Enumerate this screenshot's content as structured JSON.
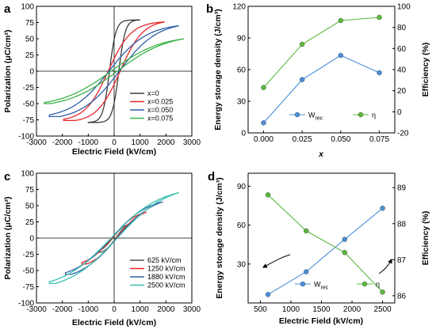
{
  "chart_data": [
    {
      "panel": "a",
      "type": "line",
      "xlabel": "Electric Field (kV/cm)",
      "ylabel": "Polarization (μC/cm²)",
      "xlim": [
        -3000,
        3000
      ],
      "ylim": [
        -100,
        100
      ],
      "xticks": [
        -3000,
        -2000,
        -1000,
        0,
        1000,
        2000,
        3000
      ],
      "yticks": [
        -100,
        -75,
        -50,
        -25,
        0,
        25,
        50,
        75,
        100
      ],
      "legend_position": "bottom-right",
      "series": [
        {
          "name": "x=0",
          "color": "#3c3c3c",
          "loop": {
            "emax": 1000,
            "pmax": 79,
            "pr": 38,
            "ec": 180,
            "rounding": 4
          }
        },
        {
          "name": "x=0.025",
          "color": "#e8282a",
          "loop": {
            "emax": 1950,
            "pmax": 76,
            "pr": 12,
            "ec": 230,
            "rounding": 2.2
          }
        },
        {
          "name": "x=0.050",
          "color": "#2f5fa8",
          "loop": {
            "emax": 2500,
            "pmax": 70,
            "pr": 6,
            "ec": 200,
            "rounding": 1.7
          }
        },
        {
          "name": "x=0.075",
          "color": "#3db44a",
          "loop": {
            "emax": 2700,
            "pmax": 50,
            "pr": 3,
            "ec": 120,
            "rounding": 1.4
          }
        }
      ]
    },
    {
      "panel": "b",
      "type": "line",
      "xlabel": "x",
      "ylabel": "Energy storage density (J/cm³)",
      "ylabel_right": "Efficiency (%)",
      "categories": [
        "0.000",
        "0.025",
        "0.050",
        "0.075"
      ],
      "x": [
        0,
        0.025,
        0.05,
        0.075
      ],
      "xlim": [
        -0.01,
        0.085
      ],
      "ylim": [
        0,
        120
      ],
      "ylim_right": [
        -20,
        100
      ],
      "yticks": [
        0,
        30,
        60,
        90,
        120
      ],
      "yticks_right": [
        -20,
        0,
        20,
        40,
        60,
        80,
        100
      ],
      "legend_position": "bottom",
      "series": [
        {
          "name_main": "W",
          "name_sub": "rec",
          "axis": "left",
          "color": "#4a90d9",
          "values": [
            9.5,
            50.5,
            73.5,
            57
          ]
        },
        {
          "name_main": "η",
          "name_sub": "",
          "axis": "right",
          "color": "#5cb83c",
          "values": [
            23,
            64,
            86.5,
            89.5
          ]
        }
      ]
    },
    {
      "panel": "c",
      "type": "line",
      "xlabel": "Electric Field (kV/cm)",
      "ylabel": "Polarization (μC/cm²)",
      "xlim": [
        -3000,
        3000
      ],
      "ylim": [
        -100,
        100
      ],
      "xticks": [
        -3000,
        -2000,
        -1000,
        0,
        1000,
        2000,
        3000
      ],
      "yticks": [
        -100,
        -75,
        -50,
        -25,
        0,
        25,
        50,
        75,
        100
      ],
      "legend_position": "bottom-right",
      "series": [
        {
          "name": "625 kV/cm",
          "color": "#555555",
          "loop": {
            "emax": 625,
            "pmax": 22,
            "pr": 2,
            "ec": 60,
            "rounding": 1.3
          }
        },
        {
          "name": "1250 kV/cm",
          "color": "#e8282a",
          "loop": {
            "emax": 1250,
            "pmax": 40,
            "pr": 3,
            "ec": 90,
            "rounding": 1.3
          }
        },
        {
          "name": "1880 kV/cm",
          "color": "#2f5fa8",
          "loop": {
            "emax": 1880,
            "pmax": 56,
            "pr": 4,
            "ec": 110,
            "rounding": 1.3
          }
        },
        {
          "name": "2500 kV/cm",
          "color": "#3bbfb0",
          "loop": {
            "emax": 2500,
            "pmax": 70,
            "pr": 5,
            "ec": 120,
            "rounding": 1.3
          }
        }
      ]
    },
    {
      "panel": "d",
      "type": "line",
      "xlabel": "Electric Field (kV/cm)",
      "ylabel": "Energy storage density (J/cm³)",
      "ylabel_right": "Efficiency (%)",
      "x": [
        625,
        1250,
        1880,
        2500
      ],
      "xlim": [
        300,
        2700
      ],
      "xticks": [
        500,
        1000,
        1500,
        2000,
        2500
      ],
      "ylim": [
        0,
        100
      ],
      "yticks": [
        30,
        60,
        90
      ],
      "ylim_right": [
        85.8,
        89.4
      ],
      "yticks_right": [
        86,
        87,
        88,
        89
      ],
      "legend_position": "bottom",
      "series": [
        {
          "name_main": "W",
          "name_sub": "rec",
          "axis": "left",
          "color": "#4a90d9",
          "values": [
            6.5,
            24,
            49,
            73
          ]
        },
        {
          "name_main": "η",
          "name_sub": "",
          "axis": "right",
          "color": "#5cb83c",
          "values": [
            88.8,
            87.8,
            87.2,
            86.1
          ]
        }
      ]
    }
  ]
}
